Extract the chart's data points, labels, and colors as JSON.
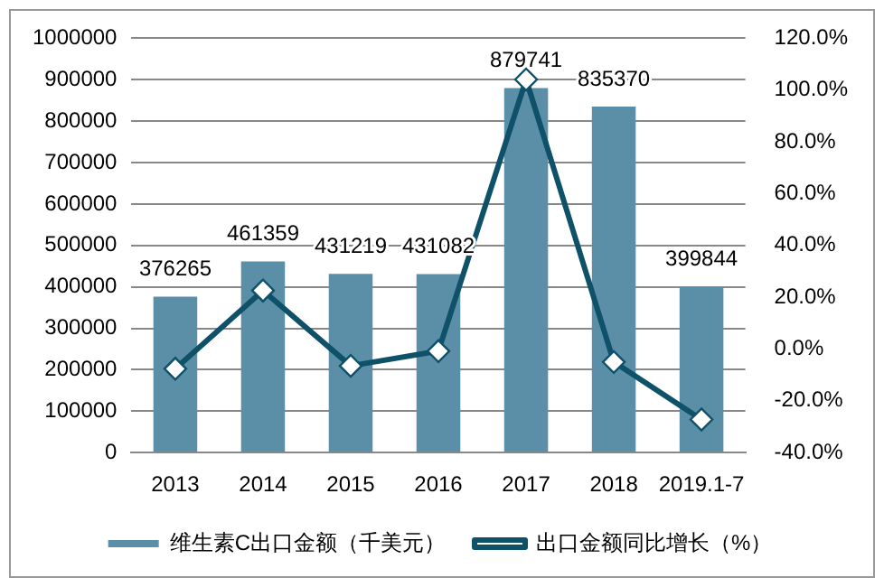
{
  "chart_data": {
    "type": "bar",
    "categories": [
      "2013",
      "2014",
      "2015",
      "2016",
      "2017",
      "2018",
      "2019.1-7"
    ],
    "series": [
      {
        "name": "维生素C出口金额（千美元）",
        "color": "#5b8fa8",
        "values": [
          376265,
          461359,
          431219,
          431082,
          879741,
          835370,
          399844
        ],
        "value_labels": [
          "376265",
          "461359",
          "431219",
          "431082",
          "879741",
          "835370",
          "399844"
        ]
      },
      {
        "name": "出口金额同比增长（%）",
        "type": "line",
        "axis": "y2",
        "color": "#0e5168",
        "values": [
          -7.6,
          22.6,
          -6.5,
          -0.8,
          104.1,
          -5.0,
          -27.2
        ]
      }
    ],
    "ylim": [
      0,
      1000000
    ],
    "yticks": [
      0,
      100000,
      200000,
      300000,
      400000,
      500000,
      600000,
      700000,
      800000,
      900000,
      1000000
    ],
    "y2lim": [
      -40,
      120
    ],
    "y2ticks": [
      {
        "value": -40,
        "label": "-40.0%"
      },
      {
        "value": -20,
        "label": "-20.0%"
      },
      {
        "value": 0,
        "label": "0.0%"
      },
      {
        "value": 20,
        "label": "20.0%"
      },
      {
        "value": 40,
        "label": "40.0%"
      },
      {
        "value": 60,
        "label": "60.0%"
      },
      {
        "value": 80,
        "label": "80.0%"
      },
      {
        "value": 100,
        "label": "100.0%"
      },
      {
        "value": 120,
        "label": "120.0%"
      }
    ],
    "grid": "y",
    "legend": "bottom",
    "marker": "diamond",
    "line_style": "solid"
  }
}
